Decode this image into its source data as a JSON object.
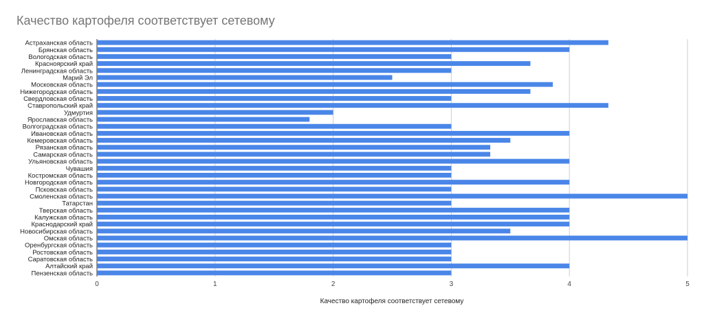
{
  "chart_data": {
    "type": "bar",
    "orientation": "horizontal",
    "title": "Качество картофеля соответствует сетевому",
    "xlabel": "Качество картофеля соответствует сетевому",
    "ylabel": "",
    "xlim": [
      0,
      5
    ],
    "xticks": [
      "0",
      "1",
      "2",
      "3",
      "4",
      "5"
    ],
    "grid": true,
    "color": "#4a86e8",
    "categories": [
      "Астраханская область",
      "Брянская область",
      "Вологодская область",
      "Красноярский край",
      "Ленинградская область",
      "Марий Эл",
      "Московская область",
      "Нижегородская область",
      "Свердловская область",
      "Ставропольский край",
      "Удмуртия",
      "Ярославская область",
      "Волгоградская область",
      "Ивановская область",
      "Кемеровская область",
      "Рязанская область",
      "Самарская область",
      "Ульяновская область",
      "Чувашия",
      "Костромская область",
      "Новгородская область",
      "Псковская область",
      "Смоленская область",
      "Татарстан",
      "Тверская область",
      "Калужская область",
      "Краснодарский край",
      "Новосибирская область",
      "Омская область",
      "Оренбургская область",
      "Ростовская область",
      "Саратовская область",
      "Алтайский край",
      "Пензенская область"
    ],
    "values": [
      4.33,
      4,
      3,
      3.67,
      3,
      2.5,
      3.86,
      3.67,
      3,
      4.33,
      2,
      1.8,
      3,
      4,
      3.5,
      3.33,
      3.33,
      4,
      3,
      3,
      4,
      3,
      5,
      3,
      4,
      4,
      4,
      3.5,
      5,
      3,
      3,
      3,
      4,
      3
    ]
  }
}
